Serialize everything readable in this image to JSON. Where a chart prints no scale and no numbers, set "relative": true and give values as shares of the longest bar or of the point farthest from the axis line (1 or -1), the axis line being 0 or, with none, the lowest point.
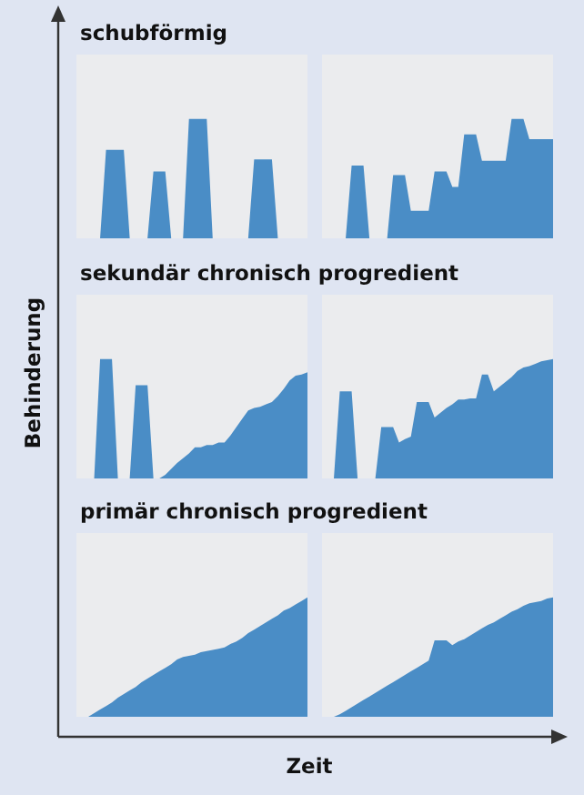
{
  "chart_data": [
    {
      "type": "area",
      "title": "schubförmig",
      "ylabel": "Behinderung",
      "relative": true,
      "categories": [
        null,
        null,
        null,
        null,
        null,
        null,
        null,
        null,
        null,
        null,
        null,
        null,
        null,
        null,
        null,
        null,
        null,
        null,
        null,
        null,
        null,
        null,
        null,
        null,
        null,
        null,
        null,
        null,
        null,
        null,
        null,
        null,
        null,
        null,
        null,
        null,
        null,
        null,
        null,
        null
      ],
      "series": [
        {
          "color": "#4a8dc6",
          "values": [
            0,
            0,
            0,
            0,
            0,
            0.74,
            0.74,
            0.74,
            0.74,
            0,
            0,
            0,
            0,
            0.56,
            0.56,
            0.56,
            0,
            0,
            0,
            1,
            1,
            1,
            1,
            0,
            0,
            0,
            0,
            0,
            0,
            0,
            0.66,
            0.66,
            0.66,
            0.66,
            0,
            0,
            0,
            0,
            0,
            0
          ]
        }
      ]
    },
    {
      "type": "area",
      "relative": true,
      "categories": [
        null,
        null,
        null,
        null,
        null,
        null,
        null,
        null,
        null,
        null,
        null,
        null,
        null,
        null,
        null,
        null,
        null,
        null,
        null,
        null,
        null,
        null,
        null,
        null,
        null,
        null,
        null,
        null,
        null,
        null,
        null,
        null,
        null,
        null,
        null,
        null,
        null,
        null,
        null,
        null
      ],
      "series": [
        {
          "color": "#4a8dc6",
          "values": [
            0,
            0,
            0,
            0,
            0,
            0.61,
            0.61,
            0.61,
            0,
            0,
            0,
            0,
            0.53,
            0.53,
            0.53,
            0.23,
            0.23,
            0.23,
            0.23,
            0.56,
            0.56,
            0.56,
            0.43,
            0.43,
            0.87,
            0.87,
            0.87,
            0.65,
            0.65,
            0.65,
            0.65,
            0.65,
            1,
            1,
            1,
            0.83,
            0.83,
            0.83,
            0.83,
            0.83
          ]
        }
      ]
    },
    {
      "type": "area",
      "title": "sekundär chronisch progredient",
      "relative": true,
      "categories": [
        null,
        null,
        null,
        null,
        null,
        null,
        null,
        null,
        null,
        null,
        null,
        null,
        null,
        null,
        null,
        null,
        null,
        null,
        null,
        null,
        null,
        null,
        null,
        null,
        null,
        null,
        null,
        null,
        null,
        null,
        null,
        null,
        null,
        null,
        null,
        null,
        null,
        null,
        null,
        null
      ],
      "series": [
        {
          "color": "#4a8dc6",
          "values": [
            0,
            0,
            0,
            0,
            1,
            1,
            1,
            0,
            0,
            0,
            0.78,
            0.78,
            0.78,
            0,
            0,
            0.03,
            0.08,
            0.13,
            0.17,
            0.21,
            0.26,
            0.26,
            0.28,
            0.28,
            0.3,
            0.3,
            0.36,
            0.43,
            0.5,
            0.57,
            0.59,
            0.6,
            0.62,
            0.64,
            0.69,
            0.75,
            0.82,
            0.86,
            0.87,
            0.89
          ]
        }
      ]
    },
    {
      "type": "area",
      "relative": true,
      "categories": [
        null,
        null,
        null,
        null,
        null,
        null,
        null,
        null,
        null,
        null,
        null,
        null,
        null,
        null,
        null,
        null,
        null,
        null,
        null,
        null,
        null,
        null,
        null,
        null,
        null,
        null,
        null,
        null,
        null,
        null,
        null,
        null,
        null,
        null,
        null,
        null,
        null,
        null,
        null,
        null
      ],
      "series": [
        {
          "color": "#4a8dc6",
          "values": [
            0,
            0,
            0,
            0.73,
            0.73,
            0.73,
            0,
            0,
            0,
            0,
            0.43,
            0.43,
            0.43,
            0.3,
            0.33,
            0.35,
            0.64,
            0.64,
            0.64,
            0.51,
            0.55,
            0.59,
            0.62,
            0.66,
            0.66,
            0.67,
            0.67,
            0.87,
            0.87,
            0.73,
            0.77,
            0.81,
            0.85,
            0.9,
            0.93,
            0.94,
            0.96,
            0.98,
            0.99,
            1
          ]
        }
      ]
    },
    {
      "type": "area",
      "title": "primär chronisch progredient",
      "xlabel": "Zeit",
      "relative": true,
      "categories": [
        null,
        null,
        null,
        null,
        null,
        null,
        null,
        null,
        null,
        null,
        null,
        null,
        null,
        null,
        null,
        null,
        null,
        null,
        null,
        null,
        null,
        null,
        null,
        null,
        null,
        null,
        null,
        null,
        null,
        null,
        null,
        null,
        null,
        null,
        null,
        null,
        null,
        null,
        null,
        null
      ],
      "series": [
        {
          "color": "#4a8dc6",
          "values": [
            0,
            0,
            0,
            0.03,
            0.06,
            0.09,
            0.12,
            0.16,
            0.19,
            0.22,
            0.25,
            0.29,
            0.32,
            0.35,
            0.38,
            0.41,
            0.44,
            0.48,
            0.5,
            0.51,
            0.52,
            0.54,
            0.55,
            0.56,
            0.57,
            0.58,
            0.61,
            0.63,
            0.66,
            0.7,
            0.73,
            0.76,
            0.79,
            0.82,
            0.85,
            0.89,
            0.91,
            0.94,
            0.97,
            1
          ]
        }
      ]
    },
    {
      "type": "area",
      "relative": true,
      "categories": [
        null,
        null,
        null,
        null,
        null,
        null,
        null,
        null,
        null,
        null,
        null,
        null,
        null,
        null,
        null,
        null,
        null,
        null,
        null,
        null,
        null,
        null,
        null,
        null,
        null,
        null,
        null,
        null,
        null,
        null,
        null,
        null,
        null,
        null,
        null,
        null,
        null,
        null,
        null,
        null
      ],
      "series": [
        {
          "color": "#4a8dc6",
          "values": [
            0,
            0,
            0,
            0.02,
            0.05,
            0.08,
            0.11,
            0.14,
            0.17,
            0.2,
            0.23,
            0.26,
            0.29,
            0.32,
            0.35,
            0.38,
            0.41,
            0.44,
            0.47,
            0.64,
            0.64,
            0.64,
            0.6,
            0.63,
            0.65,
            0.68,
            0.71,
            0.74,
            0.77,
            0.79,
            0.82,
            0.85,
            0.88,
            0.9,
            0.93,
            0.95,
            0.96,
            0.97,
            0.99,
            1
          ]
        }
      ]
    }
  ]
}
